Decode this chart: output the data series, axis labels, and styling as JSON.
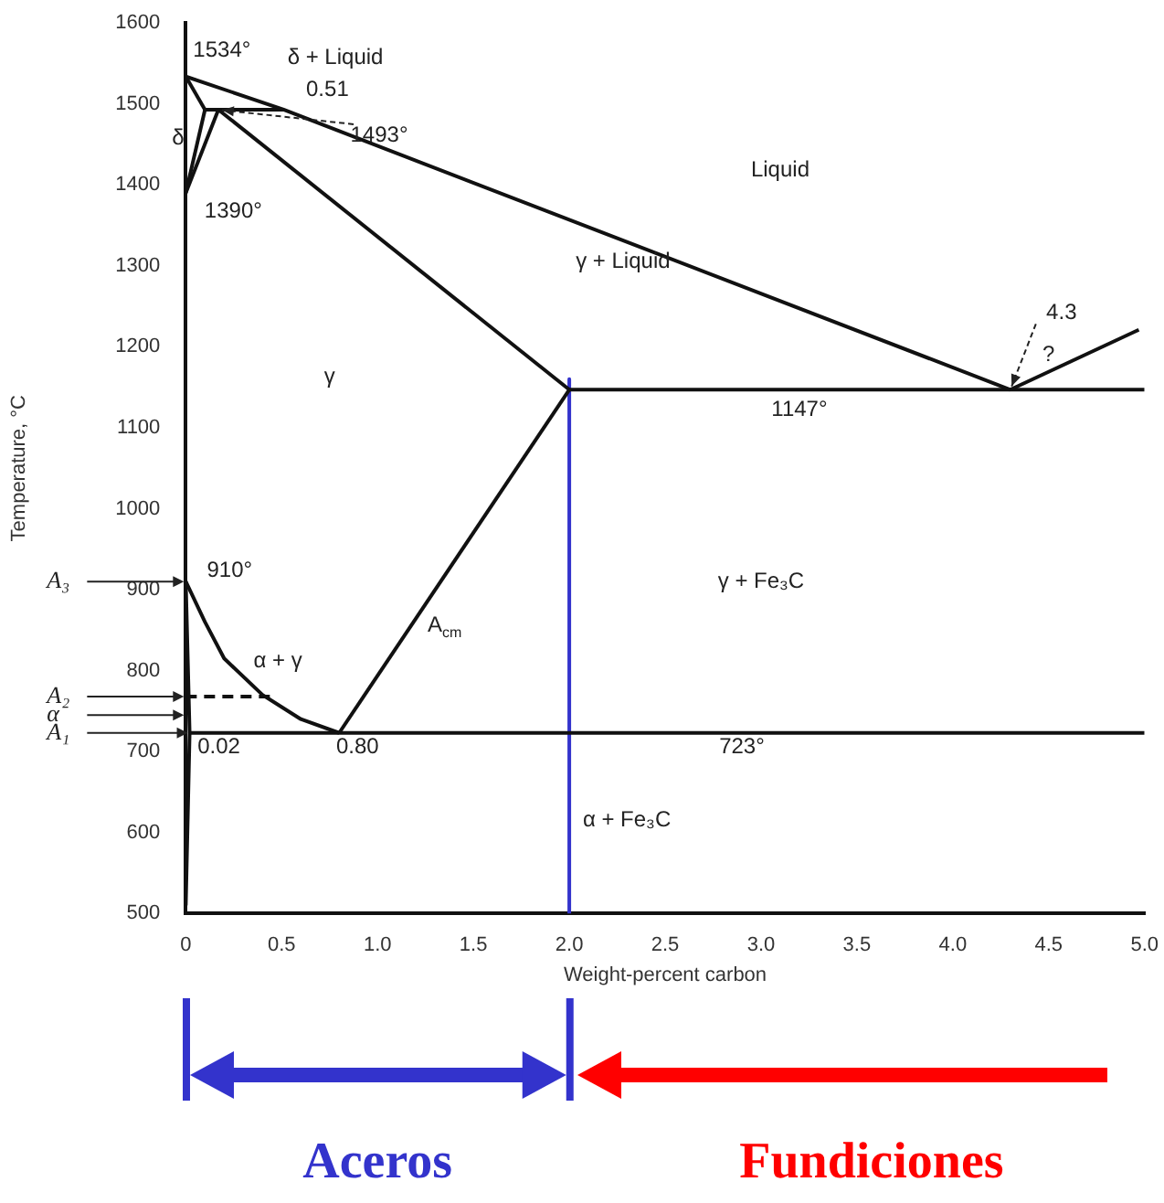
{
  "chart_data": {
    "type": "line",
    "xlabel": "Weight-percent carbon",
    "ylabel": "Temperature, °C",
    "xlim": [
      0,
      5
    ],
    "ylim": [
      500,
      1600
    ],
    "xticks": [
      {
        "value": 0,
        "label": "0"
      },
      {
        "value": 0.5,
        "label": "0.5"
      },
      {
        "value": 1,
        "label": "1.0"
      },
      {
        "value": 1.5,
        "label": "1.5"
      },
      {
        "value": 2,
        "label": "2.0"
      },
      {
        "value": 2.5,
        "label": "2.5"
      },
      {
        "value": 3,
        "label": "3.0"
      },
      {
        "value": 3.5,
        "label": "3.5"
      },
      {
        "value": 4,
        "label": "4.0"
      },
      {
        "value": 4.5,
        "label": "4.5"
      },
      {
        "value": 5,
        "label": "5.0"
      }
    ],
    "yticks": [
      500,
      600,
      700,
      800,
      900,
      1000,
      1100,
      1200,
      1300,
      1400,
      1500,
      1600
    ],
    "grid": false,
    "legend": false,
    "marker": "none",
    "line_style": "solid",
    "series": [
      {
        "color": "#111111",
        "x": [
          0,
          0.51,
          4.3
        ],
        "values": [
          1534,
          1493,
          1147
        ]
      },
      {
        "color": "#111111",
        "x": [
          4.3,
          4.97
        ],
        "values": [
          1147,
          1221
        ]
      },
      {
        "color": "#111111",
        "x": [
          0,
          0.1
        ],
        "values": [
          1534,
          1493
        ]
      },
      {
        "color": "#111111",
        "x": [
          0,
          0.1
        ],
        "values": [
          1390,
          1493
        ]
      },
      {
        "color": "#111111",
        "x": [
          0,
          0.17
        ],
        "values": [
          1390,
          1493
        ]
      },
      {
        "color": "#111111",
        "x": [
          0.1,
          0.51
        ],
        "values": [
          1493,
          1493
        ]
      },
      {
        "color": "#111111",
        "x": [
          0.17,
          2.0
        ],
        "values": [
          1493,
          1147
        ]
      },
      {
        "color": "#111111",
        "x": [
          2.0,
          5.0
        ],
        "values": [
          1147,
          1147
        ]
      },
      {
        "color": "#111111",
        "x": [
          0.8,
          2.0
        ],
        "values": [
          723,
          1147
        ]
      },
      {
        "color": "#111111",
        "x": [
          0,
          0.1,
          0.2,
          0.4,
          0.6,
          0.8
        ],
        "values": [
          910,
          860,
          815,
          770,
          740,
          723
        ]
      },
      {
        "color": "#111111",
        "x": [
          0.02,
          5.0
        ],
        "values": [
          723,
          723
        ]
      },
      {
        "color": "#111111",
        "x": [
          0,
          0.02,
          0
        ],
        "values": [
          910,
          723,
          510
        ]
      },
      {
        "color": "#111111",
        "x": [
          0,
          0.45
        ],
        "values": [
          768,
          768
        ],
        "line_style": "dashed"
      },
      {
        "color": "#3333cc",
        "x": [
          2.0,
          2.0
        ],
        "values": [
          1160,
          500
        ]
      }
    ],
    "annotations": [
      {
        "text": "1534°",
        "x": 0,
        "y": 1534
      },
      "δ + Liquid",
      {
        "text": "0.51",
        "x": 0.51,
        "y": 1493
      },
      {
        "text": "1493°",
        "x": 0.17,
        "y": 1493
      },
      "δ",
      {
        "text": "1390°",
        "x": 0,
        "y": 1390
      },
      "Liquid",
      "γ + Liquid",
      {
        "text": "4.3",
        "x": 4.3,
        "y": 1147
      },
      "?",
      "γ",
      {
        "text": "1147°",
        "x": 3.2,
        "y": 1147
      },
      {
        "text": "910°",
        "x": 0,
        "y": 910
      },
      {
        "text": "A₃",
        "x": 0,
        "y": 910
      },
      "α + γ",
      "A$_{cm}$",
      {
        "text": "A₂",
        "x": 0,
        "y": 768
      },
      "α",
      {
        "text": "A₁",
        "x": 0.02,
        "y": 723
      },
      {
        "text": "0.02",
        "x": 0.02,
        "y": 723
      },
      {
        "text": "0.80",
        "x": 0.8,
        "y": 723
      },
      {
        "text": "723°",
        "x": 2.9,
        "y": 723
      },
      "γ + Fe₃C",
      "α + Fe₃C",
      "Aceros",
      "Fundiciones"
    ]
  }
}
